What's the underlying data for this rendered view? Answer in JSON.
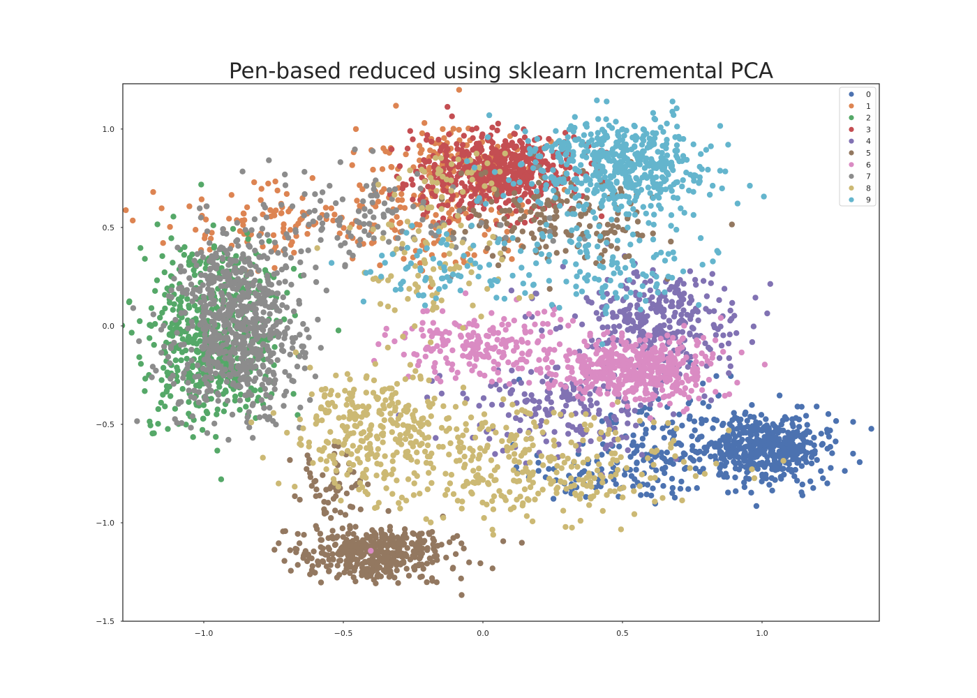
{
  "chart_data": {
    "type": "scatter",
    "title": "Pen-based reduced using sklearn Incremental PCA",
    "xlabel": "",
    "ylabel": "",
    "xlim": [
      -1.29,
      1.42
    ],
    "ylim": [
      -1.5,
      1.23
    ],
    "xticks": [
      -1.0,
      -0.5,
      0.0,
      0.5,
      1.0
    ],
    "xtick_labels": [
      "−1.0",
      "−0.5",
      "0.0",
      "0.5",
      "1.0"
    ],
    "yticks": [
      -1.5,
      -1.0,
      -0.5,
      0.0,
      0.5,
      1.0
    ],
    "ytick_labels": [
      "−1.5",
      "−1.0",
      "−0.5",
      "0.0",
      "0.5",
      "1.0"
    ],
    "grid": false,
    "legend_position": "top-right",
    "series": [
      {
        "name": "0",
        "color": "#4c72b0",
        "clusters": [
          {
            "cx": 1.02,
            "cy": -0.62,
            "sx": 0.11,
            "sy": 0.09,
            "n": 420
          },
          {
            "cx": 0.7,
            "cy": -0.58,
            "sx": 0.22,
            "sy": 0.14,
            "n": 170
          },
          {
            "cx": 0.45,
            "cy": -0.78,
            "sx": 0.15,
            "sy": 0.06,
            "n": 60
          }
        ]
      },
      {
        "name": "1",
        "color": "#dd8452",
        "clusters": [
          {
            "cx": -0.1,
            "cy": 0.78,
            "sx": 0.18,
            "sy": 0.13,
            "n": 180
          },
          {
            "cx": -0.72,
            "cy": 0.52,
            "sx": 0.24,
            "sy": 0.1,
            "n": 120
          },
          {
            "cx": -0.15,
            "cy": 0.45,
            "sx": 0.14,
            "sy": 0.1,
            "n": 60
          }
        ]
      },
      {
        "name": "2",
        "color": "#55a868",
        "clusters": [
          {
            "cx": -0.97,
            "cy": -0.1,
            "sx": 0.12,
            "sy": 0.2,
            "n": 480
          },
          {
            "cx": -0.95,
            "cy": 0.3,
            "sx": 0.12,
            "sy": 0.1,
            "n": 60
          }
        ]
      },
      {
        "name": "3",
        "color": "#c44e52",
        "clusters": [
          {
            "cx": 0.05,
            "cy": 0.78,
            "sx": 0.15,
            "sy": 0.1,
            "n": 560
          }
        ]
      },
      {
        "name": "4",
        "color": "#8172b3",
        "clusters": [
          {
            "cx": 0.62,
            "cy": 0.02,
            "sx": 0.16,
            "sy": 0.12,
            "n": 300
          },
          {
            "cx": 0.28,
            "cy": -0.42,
            "sx": 0.2,
            "sy": 0.12,
            "n": 180
          }
        ]
      },
      {
        "name": "5",
        "color": "#937860",
        "clusters": [
          {
            "cx": -0.38,
            "cy": -1.15,
            "sx": 0.14,
            "sy": 0.07,
            "n": 420
          },
          {
            "cx": 0.3,
            "cy": 0.55,
            "sx": 0.2,
            "sy": 0.12,
            "n": 170
          },
          {
            "cx": -0.55,
            "cy": -0.82,
            "sx": 0.06,
            "sy": 0.12,
            "n": 60
          }
        ]
      },
      {
        "name": "6",
        "color": "#da8bc3",
        "clusters": [
          {
            "cx": 0.55,
            "cy": -0.22,
            "sx": 0.14,
            "sy": 0.08,
            "n": 480
          },
          {
            "cx": 0.0,
            "cy": -0.1,
            "sx": 0.16,
            "sy": 0.09,
            "n": 200
          },
          {
            "cx": -0.42,
            "cy": -1.15,
            "sx": 0.01,
            "sy": 0.01,
            "n": 1
          }
        ]
      },
      {
        "name": "7",
        "color": "#8c8c8c",
        "clusters": [
          {
            "cx": -0.88,
            "cy": -0.08,
            "sx": 0.12,
            "sy": 0.2,
            "n": 520
          },
          {
            "cx": -0.88,
            "cy": 0.25,
            "sx": 0.1,
            "sy": 0.1,
            "n": 150
          },
          {
            "cx": -0.4,
            "cy": 0.55,
            "sx": 0.25,
            "sy": 0.12,
            "n": 140
          }
        ]
      },
      {
        "name": "8",
        "color": "#ccb974",
        "clusters": [
          {
            "cx": -0.4,
            "cy": -0.5,
            "sx": 0.15,
            "sy": 0.16,
            "n": 280
          },
          {
            "cx": 0.15,
            "cy": -0.72,
            "sx": 0.3,
            "sy": 0.14,
            "n": 320
          },
          {
            "cx": -0.2,
            "cy": 0.3,
            "sx": 0.15,
            "sy": 0.16,
            "n": 80
          },
          {
            "cx": -0.1,
            "cy": 0.75,
            "sx": 0.1,
            "sy": 0.08,
            "n": 40
          }
        ]
      },
      {
        "name": "9",
        "color": "#64b5cd",
        "clusters": [
          {
            "cx": 0.48,
            "cy": 0.82,
            "sx": 0.17,
            "sy": 0.12,
            "n": 520
          },
          {
            "cx": 0.45,
            "cy": 0.3,
            "sx": 0.18,
            "sy": 0.12,
            "n": 110
          },
          {
            "cx": -0.15,
            "cy": 0.28,
            "sx": 0.16,
            "sy": 0.1,
            "n": 70
          }
        ]
      }
    ]
  }
}
